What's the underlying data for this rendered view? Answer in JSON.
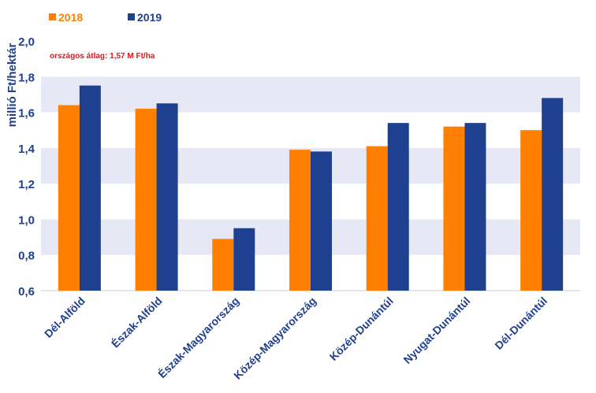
{
  "chart_data": {
    "type": "bar",
    "ylabel": "millió Ft/hektár",
    "ylim": [
      0.6,
      2.0
    ],
    "yticks": [
      "0,6",
      "0,8",
      "1,0",
      "1,2",
      "1,4",
      "1,6",
      "1,8",
      "2,0"
    ],
    "ytick_values": [
      0.6,
      0.8,
      1.0,
      1.2,
      1.4,
      1.6,
      1.8,
      2.0
    ],
    "categories": [
      "Dél-Alföld",
      "Észak-Alföld",
      "Észak-Magyarország",
      "Közép-Magyarország",
      "Közép-Dunántúl",
      "Nyugat-Dunántúl",
      "Dél-Dunántúl"
    ],
    "series": [
      {
        "name": "2018",
        "color": "#ff8000",
        "values": [
          1.64,
          1.62,
          0.89,
          1.39,
          1.41,
          1.52,
          1.5
        ]
      },
      {
        "name": "2019",
        "color": "#1f3f8f",
        "values": [
          1.75,
          1.65,
          0.95,
          1.38,
          1.54,
          1.54,
          1.68
        ]
      }
    ],
    "annotation": {
      "text": "országos átlag: 1,57 M Ft/ha",
      "color": "#e8141b"
    },
    "grid": "alternating-bands",
    "band_color": "#e6e9f5",
    "legend_placement": "top-left"
  }
}
